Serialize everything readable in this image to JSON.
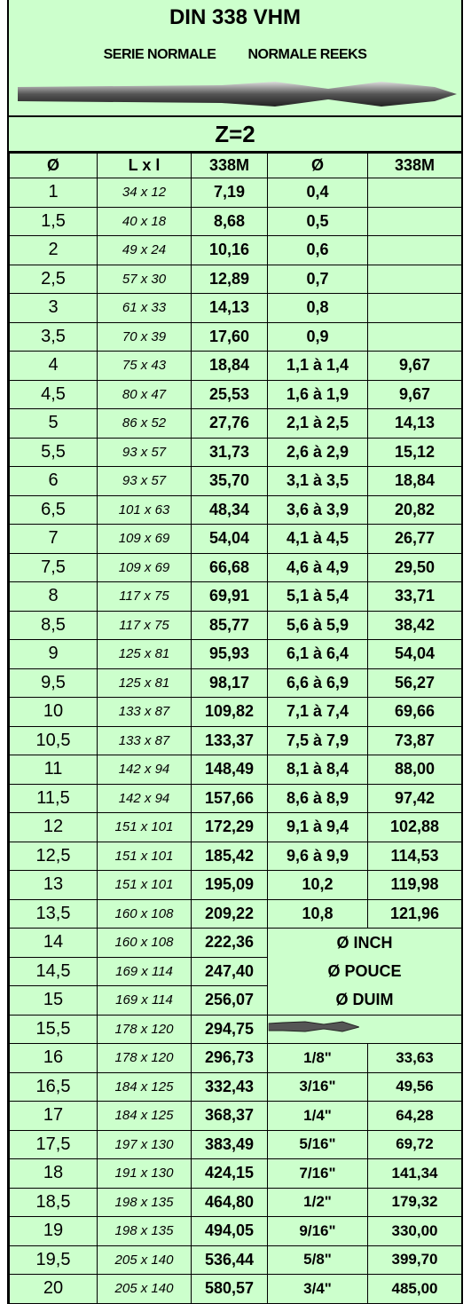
{
  "header": {
    "title": "DIN 338 VHM",
    "subtitle_left": "SERIE NORMALE",
    "subtitle_right": "NORMALE REEKS",
    "teeth": "Z=2"
  },
  "table": {
    "columns": [
      "Ø",
      "L x l",
      "338M",
      "Ø",
      "338M"
    ],
    "main_rows": [
      [
        "1",
        "34 x 12",
        "7,19"
      ],
      [
        "1,5",
        "40 x 18",
        "8,68"
      ],
      [
        "2",
        "49 x 24",
        "10,16"
      ],
      [
        "2,5",
        "57 x 30",
        "12,89"
      ],
      [
        "3",
        "61 x 33",
        "14,13"
      ],
      [
        "3,5",
        "70 x 39",
        "17,60"
      ],
      [
        "4",
        "75 x 43",
        "18,84"
      ],
      [
        "4,5",
        "80 x 47",
        "25,53"
      ],
      [
        "5",
        "86 x 52",
        "27,76"
      ],
      [
        "5,5",
        "93 x 57",
        "31,73"
      ],
      [
        "6",
        "93 x 57",
        "35,70"
      ],
      [
        "6,5",
        "101 x 63",
        "48,34"
      ],
      [
        "7",
        "109 x 69",
        "54,04"
      ],
      [
        "7,5",
        "109 x 69",
        "66,68"
      ],
      [
        "8",
        "117 x 75",
        "69,91"
      ],
      [
        "8,5",
        "117 x 75",
        "85,77"
      ],
      [
        "9",
        "125 x 81",
        "95,93"
      ],
      [
        "9,5",
        "125 x 81",
        "98,17"
      ],
      [
        "10",
        "133 x 87",
        "109,82"
      ],
      [
        "10,5",
        "133 x 87",
        "133,37"
      ],
      [
        "11",
        "142 x 94",
        "148,49"
      ],
      [
        "11,5",
        "142 x 94",
        "157,66"
      ],
      [
        "12",
        "151 x 101",
        "172,29"
      ],
      [
        "12,5",
        "151 x 101",
        "185,42"
      ],
      [
        "13",
        "151 x 101",
        "195,09"
      ],
      [
        "13,5",
        "160 x 108",
        "209,22"
      ],
      [
        "14",
        "160 x 108",
        "222,36"
      ],
      [
        "14,5",
        "169 x 114",
        "247,40"
      ],
      [
        "15",
        "169 x 114",
        "256,07"
      ],
      [
        "15,5",
        "178 x 120",
        "294,75"
      ],
      [
        "16",
        "178 x 120",
        "296,73"
      ],
      [
        "16,5",
        "184 x 125",
        "332,43"
      ],
      [
        "17",
        "184 x 125",
        "368,37"
      ],
      [
        "17,5",
        "197 x 130",
        "383,49"
      ],
      [
        "18",
        "191 x 130",
        "424,15"
      ],
      [
        "18,5",
        "198 x 135",
        "464,80"
      ],
      [
        "19",
        "198 x 135",
        "494,05"
      ],
      [
        "19,5",
        "205 x 140",
        "536,44"
      ],
      [
        "20",
        "205 x 140",
        "580,57"
      ]
    ],
    "metric_rows": [
      [
        "0,4"
      ],
      [
        "0,5"
      ],
      [
        "0,6"
      ],
      [
        "0,7"
      ],
      [
        "0,8"
      ],
      [
        "0,9"
      ],
      [
        "1,1 à 1,4",
        "9,67"
      ],
      [
        "1,6 à 1,9",
        "9,67"
      ],
      [
        "2,1 à 2,5",
        "14,13"
      ],
      [
        "2,6 à 2,9",
        "15,12"
      ],
      [
        "3,1 à 3,5",
        "18,84"
      ],
      [
        "3,6 à 3,9",
        "20,82"
      ],
      [
        "4,1 à 4,5",
        "26,77"
      ],
      [
        "4,6 à 4,9",
        "29,50"
      ],
      [
        "5,1 à 5,4",
        "33,71"
      ],
      [
        "5,6 à 5,9",
        "38,42"
      ],
      [
        "6,1 à 6,4",
        "54,04"
      ],
      [
        "6,6 à 6,9",
        "56,27"
      ],
      [
        "7,1 à 7,4",
        "69,66"
      ],
      [
        "7,5 à 7,9",
        "73,87"
      ],
      [
        "8,1 à 8,4",
        "88,00"
      ],
      [
        "8,6 à 8,9",
        "97,42"
      ],
      [
        "9,1 à 9,4",
        "102,88"
      ],
      [
        "9,6 à 9,9",
        "114,53"
      ],
      [
        "10,2",
        "119,98"
      ],
      [
        "10,8",
        "121,96"
      ]
    ],
    "inch_headers": [
      "Ø INCH",
      "Ø POUCE",
      "Ø DUIM"
    ],
    "inch_rows": [
      [
        "1/8\"",
        "33,63"
      ],
      [
        "3/16\"",
        "49,56"
      ],
      [
        "1/4\"",
        "64,28"
      ],
      [
        "5/16\"",
        "69,72"
      ],
      [
        "7/16\"",
        "141,34"
      ],
      [
        "1/2\"",
        "179,32"
      ],
      [
        "9/16\"",
        "330,00"
      ],
      [
        "5/8\"",
        "399,70"
      ],
      [
        "3/4\"",
        "485,00"
      ]
    ]
  }
}
